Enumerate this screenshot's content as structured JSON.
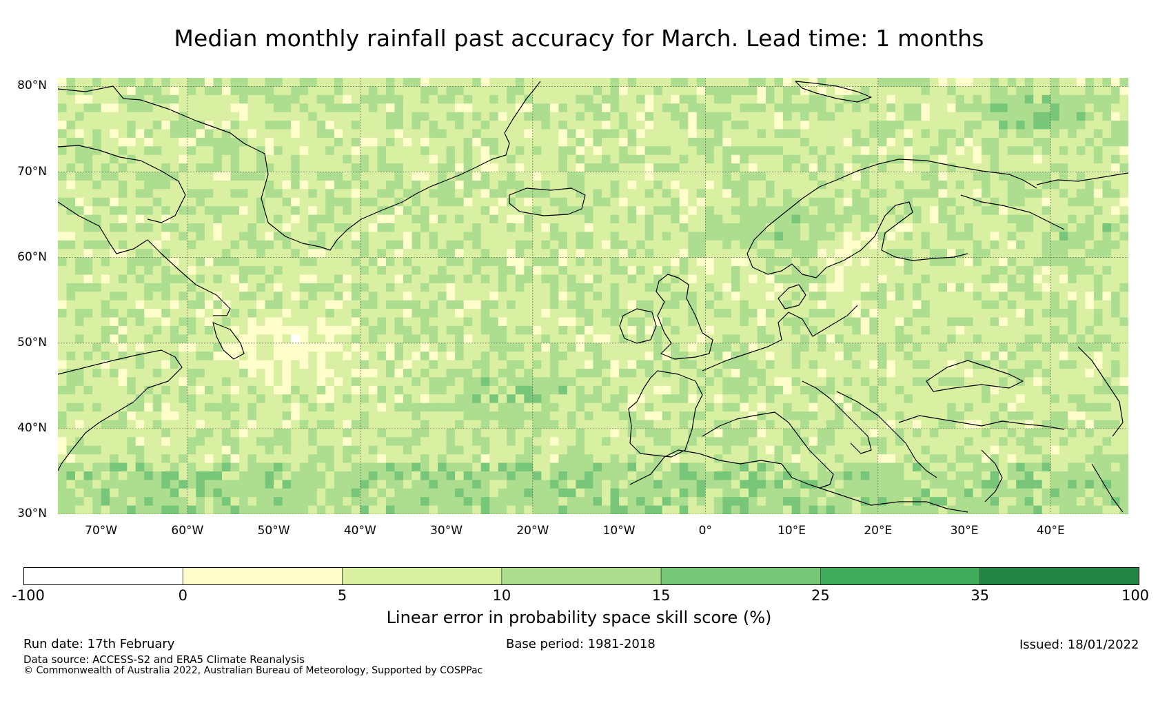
{
  "title": "Median monthly rainfall past accuracy for March. Lead time: 1 months",
  "map": {
    "lon_range": [
      -75,
      49
    ],
    "lat_range": [
      30,
      81
    ],
    "lat_labels": [
      "30°N",
      "40°N",
      "50°N",
      "60°N",
      "70°N",
      "80°N"
    ],
    "lon_labels": [
      "70°W",
      "60°W",
      "50°W",
      "40°W",
      "30°W",
      "20°W",
      "10°W",
      "0°",
      "10°E",
      "20°E",
      "30°E",
      "40°E"
    ],
    "grid": true,
    "coastlines": true
  },
  "colorbar": {
    "ticks": [
      "-100",
      "0",
      "5",
      "10",
      "15",
      "25",
      "35",
      "100"
    ],
    "colors": [
      "#ffffff",
      "#ffffcc",
      "#d9f0a3",
      "#addd8e",
      "#78c679",
      "#41ab5d",
      "#238443"
    ],
    "label": "Linear error in probability space skill score (%)"
  },
  "footer": {
    "run_date": "Run date: 17th February",
    "base_period": "Base period: 1981-2018",
    "issued": "Issued: 18/01/2022",
    "data_source": "Data source: ACCESS-S2 and ERA5 Climate Reanalysis",
    "copyright": "© Commonwealth of Australia 2022, Australian Bureau of Meteorology, Supported by COSPPac"
  }
}
